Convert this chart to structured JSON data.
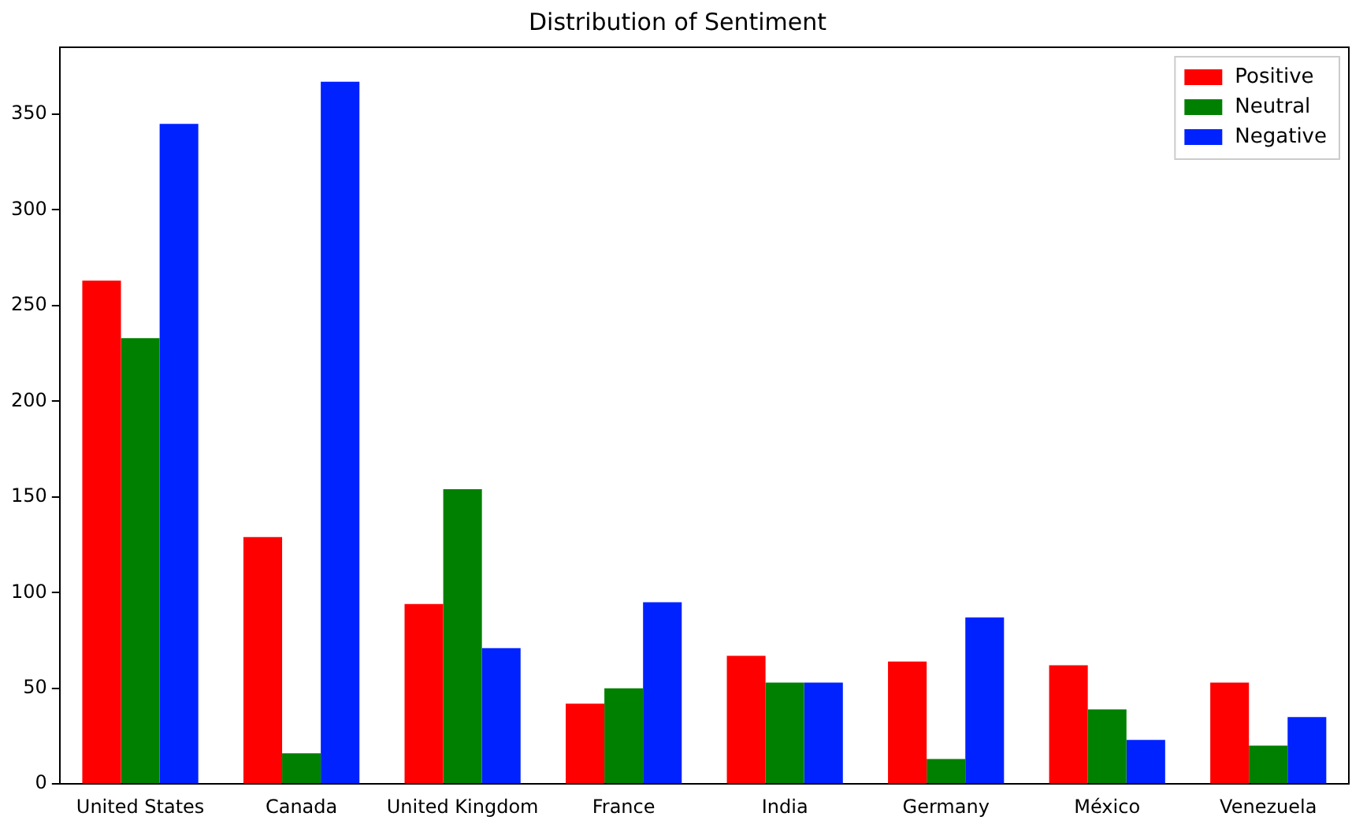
{
  "chart_data": {
    "type": "bar",
    "title": "Distribution of Sentiment",
    "categories": [
      "United States",
      "Canada",
      "United Kingdom",
      "France",
      "India",
      "Germany",
      "México",
      "Venezuela"
    ],
    "series": [
      {
        "name": "Positive",
        "color": "#ff0000",
        "values": [
          263,
          129,
          94,
          42,
          67,
          64,
          62,
          53
        ]
      },
      {
        "name": "Neutral",
        "color": "#008000",
        "values": [
          233,
          16,
          154,
          50,
          53,
          13,
          39,
          20
        ]
      },
      {
        "name": "Negative",
        "color": "#0022ff",
        "values": [
          345,
          367,
          71,
          95,
          53,
          87,
          23,
          35
        ]
      }
    ],
    "ylim": [
      0,
      385
    ],
    "yticks": [
      0,
      50,
      100,
      150,
      200,
      250,
      300,
      350
    ],
    "grid": false,
    "legend": "top right"
  }
}
